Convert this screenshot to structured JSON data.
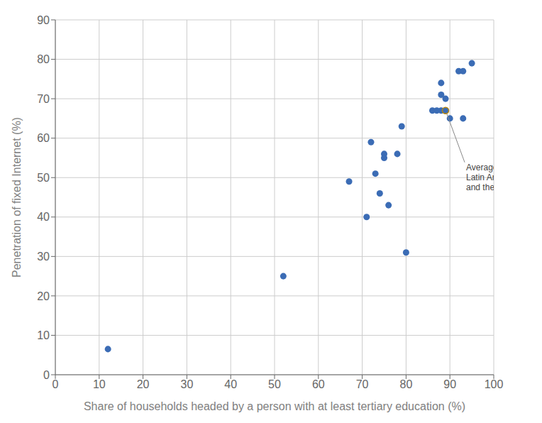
{
  "chart_data": {
    "type": "scatter",
    "xlabel": "Share of households headed by a person with at least tertiary education (%)",
    "ylabel": "Penetration of fixed Internet (%)",
    "series": [
      {
        "x": [
          12,
          52,
          67,
          71,
          72,
          73,
          74,
          75,
          75,
          76,
          78,
          79,
          80,
          86,
          87,
          88,
          88,
          88,
          89,
          89,
          90,
          92,
          93,
          93,
          95
        ],
        "values": [
          6.5,
          25,
          49,
          40,
          59,
          51,
          46,
          56,
          55,
          43,
          56,
          63,
          31,
          67,
          67,
          67,
          74,
          71,
          70,
          67,
          65,
          77,
          77,
          65,
          79
        ],
        "color": "#3b6cb5"
      },
      {
        "x": [
          89
        ],
        "values": [
          67
        ],
        "color": "#b8860b"
      }
    ],
    "annotations": [
      {
        "text": "Average in\nLatin America\nand the Caribbean",
        "x": 89,
        "y": 67
      }
    ],
    "xlim": [
      0,
      100
    ],
    "ylim": [
      0,
      90
    ],
    "xticks": [
      0,
      10,
      20,
      30,
      40,
      50,
      60,
      70,
      80,
      90,
      100
    ],
    "yticks": [
      0,
      10,
      20,
      30,
      40,
      50,
      60,
      70,
      80,
      90
    ],
    "grid": true
  }
}
